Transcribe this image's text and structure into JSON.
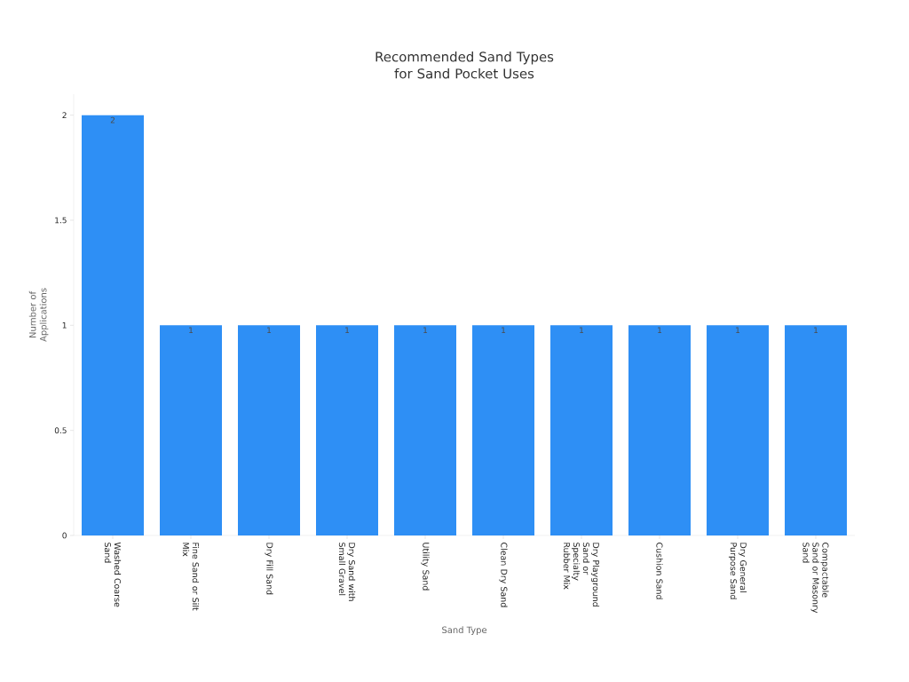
{
  "chart_data": {
    "type": "bar",
    "title": "Recommended Sand Types for Sand Pocket Uses",
    "xlabel": "Sand Type",
    "ylabel": "Number of Applications",
    "categories": [
      "Washed Coarse Sand",
      "Fine Sand or Silt Mix",
      "Dry Fill Sand",
      "Dry Sand with Small Gravel",
      "Utility Sand",
      "Clean Dry Sand",
      "Dry Playground Sand or Specialty Rubber Mix",
      "Cushion Sand",
      "Dry General Purpose Sand",
      "Compactable Sand or Masonry Sand"
    ],
    "values": [
      2,
      1,
      1,
      1,
      1,
      1,
      1,
      1,
      1,
      1
    ],
    "color": "#2e8ff5",
    "ylim": [
      0,
      2.1
    ],
    "yticks": [
      0,
      0.5,
      1,
      1.5,
      2
    ],
    "data_labels": true
  }
}
